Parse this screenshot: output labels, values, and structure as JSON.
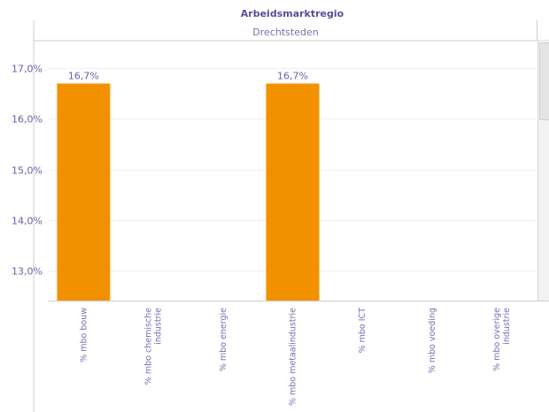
{
  "header": {
    "title": "Arbeidsmarktregio",
    "subtitle": "Drechtsteden"
  },
  "colors": {
    "bar": "#f29100",
    "text": "#6b5fa8",
    "grid": "#eeeeee",
    "axis": "#cfcfcf"
  },
  "chart_data": {
    "type": "bar",
    "title": "Arbeidsmarktregio",
    "subtitle": "Drechtsteden",
    "categories": [
      "% mbo bouw",
      "% mbo chemische industrie",
      "% mbo energie",
      "% mbo metaalindustrie",
      "% mbo ICT",
      "% mbo voeding",
      "% mbo overige industrie"
    ],
    "category_lines": [
      [
        "% mbo bouw"
      ],
      [
        "% mbo chemische",
        "industrie"
      ],
      [
        "% mbo energie"
      ],
      [
        "% mbo metaalindustrie"
      ],
      [
        "% mbo ICT"
      ],
      [
        "% mbo voeding"
      ],
      [
        "% mbo overige",
        "industrie"
      ]
    ],
    "values": [
      16.7,
      null,
      null,
      16.7,
      null,
      null,
      null
    ],
    "data_labels": [
      "16,7%",
      "",
      "",
      "16,7%",
      "",
      "",
      ""
    ],
    "yticks": [
      13.0,
      14.0,
      15.0,
      16.0,
      17.0
    ],
    "ytick_labels": [
      "13,0%",
      "14,0%",
      "15,0%",
      "16,0%",
      "17,0%"
    ],
    "ylim": [
      12.4,
      17.55
    ],
    "xlabel": "",
    "ylabel": "",
    "grid": true,
    "legend": "none"
  }
}
